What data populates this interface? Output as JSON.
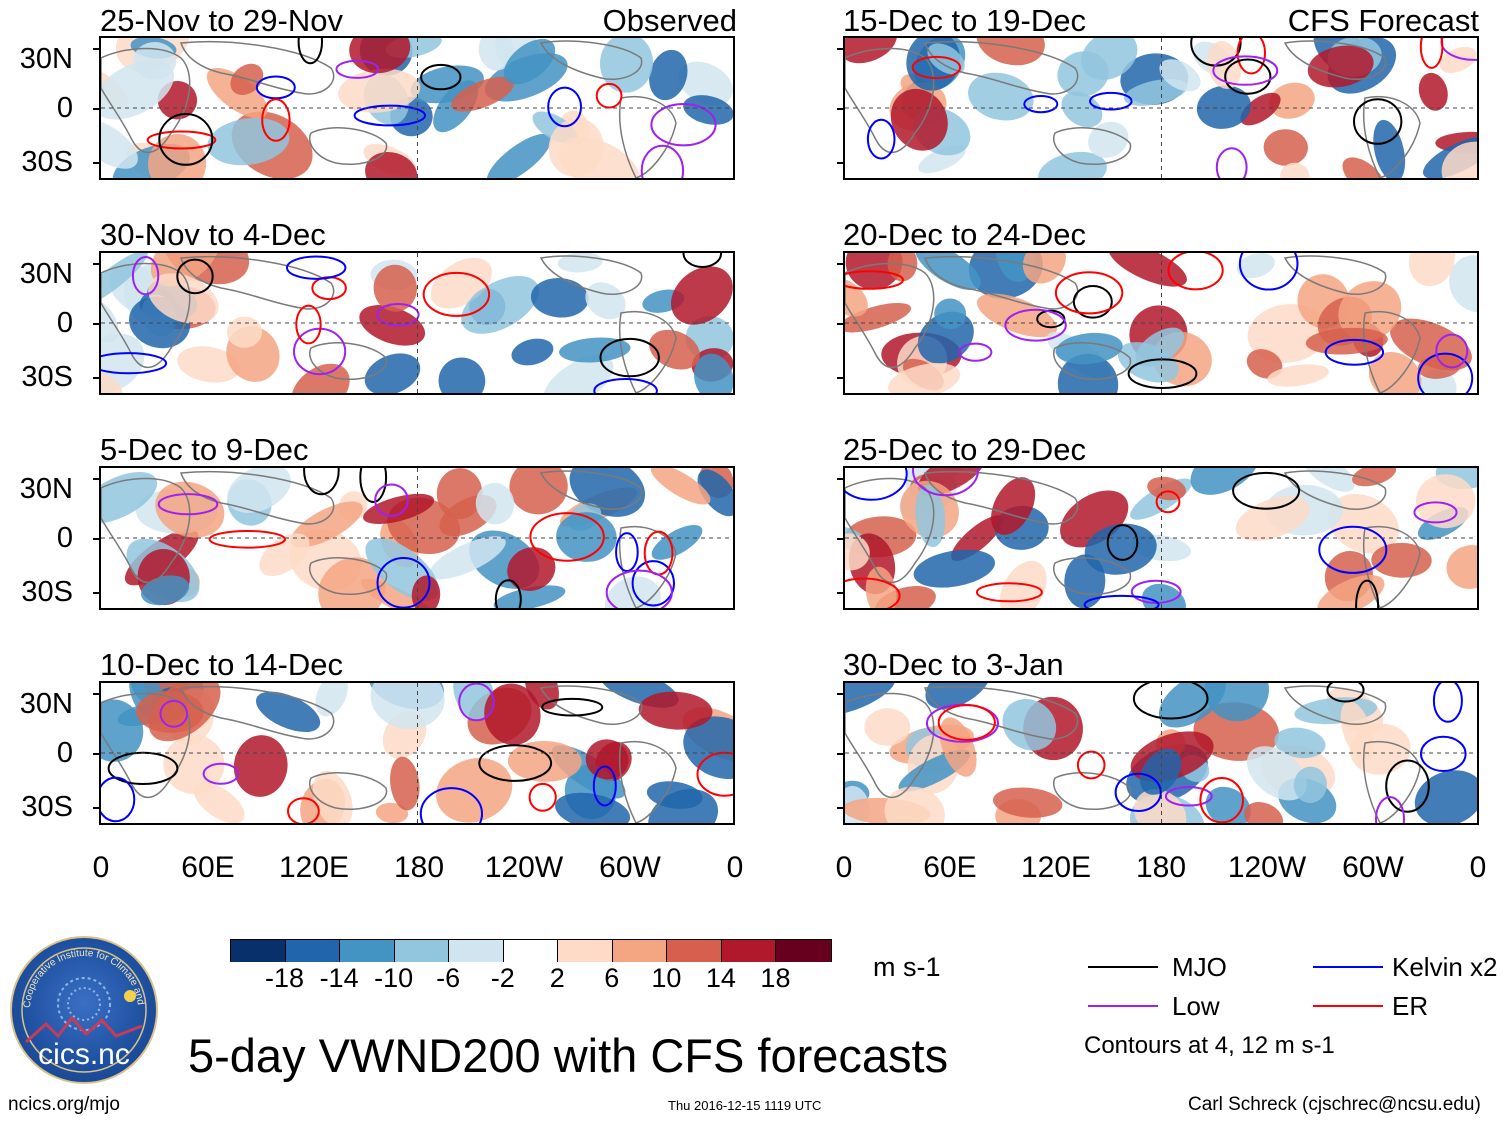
{
  "panels_left": [
    {
      "title": "25-Nov to 29-Nov",
      "tag": "Observed"
    },
    {
      "title": "30-Nov to 4-Dec",
      "tag": ""
    },
    {
      "title": "5-Dec to 9-Dec",
      "tag": ""
    },
    {
      "title": "10-Dec to 14-Dec",
      "tag": ""
    }
  ],
  "panels_right": [
    {
      "title": "15-Dec to 19-Dec",
      "tag": "CFS Forecast"
    },
    {
      "title": "20-Dec to 24-Dec",
      "tag": ""
    },
    {
      "title": "25-Dec to 29-Dec",
      "tag": ""
    },
    {
      "title": "30-Dec to 3-Jan",
      "tag": ""
    }
  ],
  "lat_labels": [
    "30N",
    "0",
    "30S"
  ],
  "lon_labels": [
    "0",
    "60E",
    "120E",
    "180",
    "120W",
    "60W",
    "0"
  ],
  "colorbar": {
    "ticks": [
      "-18",
      "-14",
      "-10",
      "-6",
      "-2",
      "2",
      "6",
      "10",
      "14",
      "18"
    ],
    "colors": [
      "#08306b",
      "#2166ac",
      "#4393c3",
      "#92c5de",
      "#d1e5f0",
      "#ffffff",
      "#fddbc7",
      "#f4a582",
      "#d6604d",
      "#b2182b",
      "#67001f"
    ],
    "units": "m s-1"
  },
  "legend": {
    "mjo": {
      "label": "MJO",
      "color": "#000000"
    },
    "kelvin": {
      "label": "Kelvin x2",
      "color": "#0000ff"
    },
    "low": {
      "label": "Low",
      "color": "#a020f0"
    },
    "er": {
      "label": "ER",
      "color": "#ff0000"
    },
    "note": "Contours at 4, 12 m s-1"
  },
  "title": "5-day VWND200 with CFS forecasts",
  "footer": {
    "left": "ncics.org/mjo",
    "center": "Thu 2016-12-15 1119 UTC",
    "right": "Carl Schreck (cjschrec@ncsu.edu)"
  },
  "logo": {
    "text": "cics.nc",
    "ring_text": "Cooperative Institute for Climate and Satellites"
  }
}
